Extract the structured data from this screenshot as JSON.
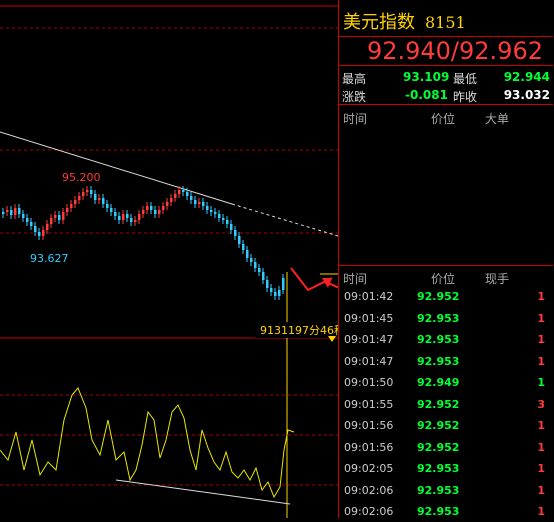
{
  "chart": {
    "high_label": "95.200",
    "low_label": "93.627",
    "cursor_label": "9131197分46秒"
  },
  "quote": {
    "title": "美元指数",
    "code": "8151",
    "price": "92.940/92.962",
    "high_label": "最高",
    "high": "93.109",
    "low_label": "最低",
    "low": "92.944",
    "change_label": "涨跌",
    "change": "-0.081",
    "prev_label": "昨收",
    "prev": "93.032"
  },
  "orders_header": {
    "time": "时间",
    "price": "价位",
    "lot": "大单"
  },
  "trades_header": {
    "time": "时间",
    "price": "价位",
    "volume": "现手"
  },
  "trades": [
    {
      "time": "09:01:42",
      "price": "92.952",
      "volume": "1",
      "vcolor": "#ff3b3b"
    },
    {
      "time": "09:01:45",
      "price": "92.953",
      "volume": "1",
      "vcolor": "#ff3b3b"
    },
    {
      "time": "09:01:47",
      "price": "92.953",
      "volume": "1",
      "vcolor": "#ff3b3b"
    },
    {
      "time": "09:01:47",
      "price": "92.953",
      "volume": "1",
      "vcolor": "#ff3b3b"
    },
    {
      "time": "09:01:50",
      "price": "92.949",
      "volume": "1",
      "vcolor": "#00ff33"
    },
    {
      "time": "09:01:55",
      "price": "92.952",
      "volume": "3",
      "vcolor": "#ff3b3b"
    },
    {
      "time": "09:01:56",
      "price": "92.952",
      "volume": "1",
      "vcolor": "#ff3b3b"
    },
    {
      "time": "09:01:56",
      "price": "92.952",
      "volume": "1",
      "vcolor": "#ff3b3b"
    },
    {
      "time": "09:02:05",
      "price": "92.953",
      "volume": "1",
      "vcolor": "#ff3b3b"
    },
    {
      "time": "09:02:06",
      "price": "92.953",
      "volume": "1",
      "vcolor": "#ff3b3b"
    },
    {
      "time": "09:02:06",
      "price": "92.953",
      "volume": "1",
      "vcolor": "#ff3b3b"
    }
  ]
}
